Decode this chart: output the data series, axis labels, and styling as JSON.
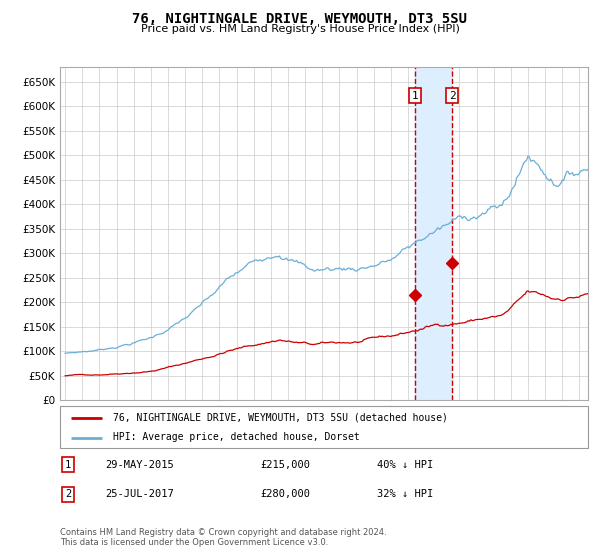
{
  "title": "76, NIGHTINGALE DRIVE, WEYMOUTH, DT3 5SU",
  "subtitle": "Price paid vs. HM Land Registry's House Price Index (HPI)",
  "legend_line1": "76, NIGHTINGALE DRIVE, WEYMOUTH, DT3 5SU (detached house)",
  "legend_line2": "HPI: Average price, detached house, Dorset",
  "footer": "Contains HM Land Registry data © Crown copyright and database right 2024.\nThis data is licensed under the Open Government Licence v3.0.",
  "hpi_color": "#6baed6",
  "price_color": "#cc0000",
  "marker_color": "#cc0000",
  "annotation_box_color": "#cc0000",
  "vline_color": "#cc0000",
  "shade_color": "#ddeeff",
  "ylim": [
    0,
    680000
  ],
  "yticks": [
    0,
    50000,
    100000,
    150000,
    200000,
    250000,
    300000,
    350000,
    400000,
    450000,
    500000,
    550000,
    600000,
    650000
  ],
  "x_start_year": 1994.7,
  "x_end_year": 2025.5,
  "sale1_year": 2015.41,
  "sale2_year": 2017.57,
  "annotation1_price": 215000,
  "annotation2_price": 280000,
  "ann1_date": "29-MAY-2015",
  "ann2_date": "25-JUL-2017",
  "ann1_price_str": "£215,000",
  "ann2_price_str": "£280,000",
  "ann1_pct": "40% ↓ HPI",
  "ann2_pct": "32% ↓ HPI"
}
